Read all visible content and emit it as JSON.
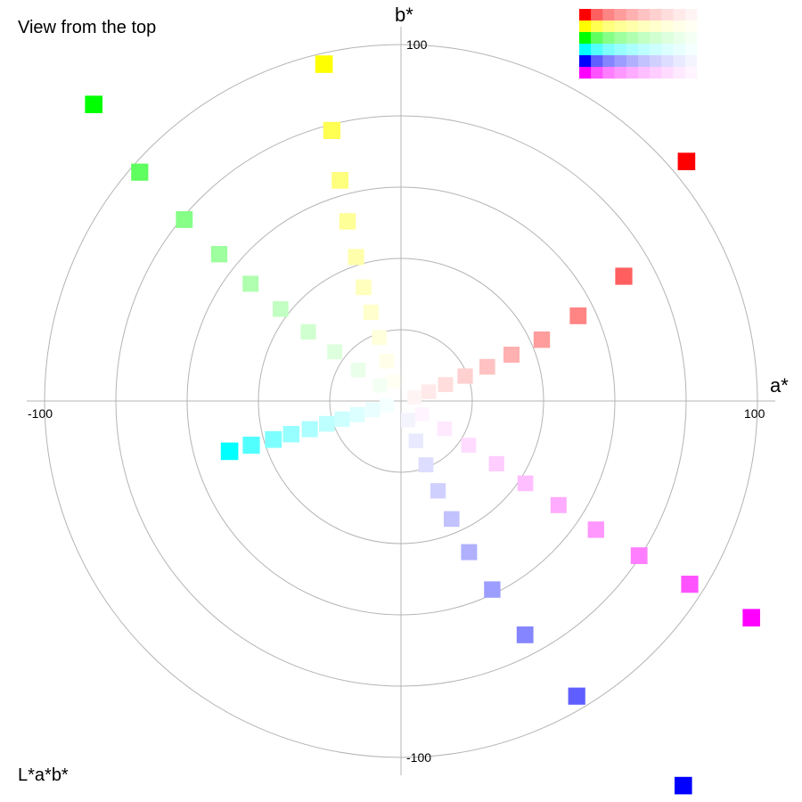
{
  "top_label": "View from the top",
  "bottom_label": "L*a*b*",
  "chart_data": {
    "type": "scatter",
    "xlabel": "a*",
    "ylabel": "b*",
    "xlim": [
      -100,
      100
    ],
    "ylim": [
      -100,
      100
    ],
    "x_tick_labels": [
      "-100",
      "100"
    ],
    "y_tick_labels": [
      "100",
      "-100"
    ],
    "grid": "concentric circles at radius 20, 40, 60, 80, 100",
    "series": [
      {
        "color": "#ff0000",
        "points": [
          {
            "a": 80.1,
            "b": 67.2,
            "fill": "#ff0000"
          },
          {
            "a": 62.5,
            "b": 35.0,
            "fill": "#ff5f5f"
          },
          {
            "a": 49.7,
            "b": 23.9,
            "fill": "#ff8585"
          },
          {
            "a": 39.5,
            "b": 17.2,
            "fill": "#ff9d9d"
          },
          {
            "a": 31.0,
            "b": 13.0,
            "fill": "#ffb0b0"
          },
          {
            "a": 24.2,
            "b": 9.6,
            "fill": "#ffc2c2"
          },
          {
            "a": 18.0,
            "b": 7.0,
            "fill": "#ffd0d0"
          },
          {
            "a": 12.5,
            "b": 4.6,
            "fill": "#ffdddd"
          },
          {
            "a": 7.8,
            "b": 2.6,
            "fill": "#ffe9e9"
          },
          {
            "a": 3.7,
            "b": 1.0,
            "fill": "#fff4f4"
          }
        ]
      },
      {
        "color": "#ffff00",
        "points": [
          {
            "a": -21.6,
            "b": 94.5,
            "fill": "#ffff00"
          },
          {
            "a": -19.4,
            "b": 75.9,
            "fill": "#ffff52"
          },
          {
            "a": -17.1,
            "b": 61.9,
            "fill": "#ffff7e"
          },
          {
            "a": -15.0,
            "b": 50.4,
            "fill": "#ffff97"
          },
          {
            "a": -12.6,
            "b": 40.4,
            "fill": "#ffffab"
          },
          {
            "a": -10.5,
            "b": 31.9,
            "fill": "#ffffbe"
          },
          {
            "a": -8.4,
            "b": 24.9,
            "fill": "#ffffcd"
          },
          {
            "a": -6.1,
            "b": 17.8,
            "fill": "#ffffdc"
          },
          {
            "a": -4.0,
            "b": 11.2,
            "fill": "#ffffe9"
          },
          {
            "a": -2.1,
            "b": 5.5,
            "fill": "#fffff4"
          }
        ]
      },
      {
        "color": "#00ff00",
        "points": [
          {
            "a": -86.2,
            "b": 83.2,
            "fill": "#00ff00"
          },
          {
            "a": -73.3,
            "b": 64.2,
            "fill": "#5fff5f"
          },
          {
            "a": -60.8,
            "b": 50.9,
            "fill": "#85ff85"
          },
          {
            "a": -51.0,
            "b": 41.2,
            "fill": "#9dff9d"
          },
          {
            "a": -42.2,
            "b": 32.9,
            "fill": "#b0ffb0"
          },
          {
            "a": -33.8,
            "b": 25.8,
            "fill": "#c2ffc2"
          },
          {
            "a": -26.0,
            "b": 19.4,
            "fill": "#d0ffd0"
          },
          {
            "a": -18.6,
            "b": 13.8,
            "fill": "#ddffdd"
          },
          {
            "a": -12.0,
            "b": 8.7,
            "fill": "#e9ffe9"
          },
          {
            "a": -5.9,
            "b": 4.4,
            "fill": "#f4fff4"
          }
        ]
      },
      {
        "color": "#00ffff",
        "points": [
          {
            "a": -48.1,
            "b": -14.1,
            "fill": "#00ffff"
          },
          {
            "a": -42.0,
            "b": -12.4,
            "fill": "#52ffff"
          },
          {
            "a": -35.8,
            "b": -10.8,
            "fill": "#7effff"
          },
          {
            "a": -30.8,
            "b": -9.3,
            "fill": "#97ffff"
          },
          {
            "a": -25.6,
            "b": -7.9,
            "fill": "#abffff"
          },
          {
            "a": -20.8,
            "b": -6.4,
            "fill": "#beffff"
          },
          {
            "a": -16.5,
            "b": -5.1,
            "fill": "#cdffff"
          },
          {
            "a": -12.2,
            "b": -3.8,
            "fill": "#dcffff"
          },
          {
            "a": -7.9,
            "b": -2.5,
            "fill": "#e9ffff"
          },
          {
            "a": -4.0,
            "b": -1.3,
            "fill": "#f4ffff"
          }
        ]
      },
      {
        "color": "#0000ff",
        "points": [
          {
            "a": 79.2,
            "b": -107.9,
            "fill": "#0000ff"
          },
          {
            "a": 49.3,
            "b": -82.8,
            "fill": "#5f5fff"
          },
          {
            "a": 34.8,
            "b": -65.6,
            "fill": "#8585ff"
          },
          {
            "a": 25.6,
            "b": -52.9,
            "fill": "#9d9dff"
          },
          {
            "a": 19.1,
            "b": -42.4,
            "fill": "#b0b0ff"
          },
          {
            "a": 14.2,
            "b": -33.1,
            "fill": "#c2c2ff"
          },
          {
            "a": 10.4,
            "b": -25.2,
            "fill": "#d0d0ff"
          },
          {
            "a": 7.0,
            "b": -17.9,
            "fill": "#ddddff"
          },
          {
            "a": 4.2,
            "b": -11.2,
            "fill": "#e9e9ff"
          },
          {
            "a": 2.0,
            "b": -5.4,
            "fill": "#f4f4ff"
          }
        ]
      },
      {
        "color": "#ff00ff",
        "points": [
          {
            "a": 98.3,
            "b": -60.8,
            "fill": "#ff00ff"
          },
          {
            "a": 81.0,
            "b": -51.4,
            "fill": "#ff52ff"
          },
          {
            "a": 66.8,
            "b": -43.4,
            "fill": "#ff7eff"
          },
          {
            "a": 54.7,
            "b": -36.1,
            "fill": "#ff97ff"
          },
          {
            "a": 44.2,
            "b": -29.2,
            "fill": "#ffabff"
          },
          {
            "a": 34.9,
            "b": -23.1,
            "fill": "#ffbeff"
          },
          {
            "a": 26.8,
            "b": -17.6,
            "fill": "#ffcdff"
          },
          {
            "a": 19.0,
            "b": -12.4,
            "fill": "#ffdcff"
          },
          {
            "a": 12.2,
            "b": -7.8,
            "fill": "#ffe9ff"
          },
          {
            "a": 5.9,
            "b": -3.7,
            "fill": "#fff4ff"
          }
        ]
      }
    ],
    "legend": {
      "placement": "top-right",
      "rows": [
        [
          "#ff0000",
          "#ff5f5f",
          "#ff8585",
          "#ff9d9d",
          "#ffb0b0",
          "#ffc2c2",
          "#ffd0d0",
          "#ffdddd",
          "#ffe9e9",
          "#fff4f4"
        ],
        [
          "#ffff00",
          "#ffff52",
          "#ffff7e",
          "#ffff97",
          "#ffffab",
          "#ffffbe",
          "#ffffcd",
          "#ffffdc",
          "#ffffe9",
          "#fffff4"
        ],
        [
          "#00ff00",
          "#5fff5f",
          "#85ff85",
          "#9dff9d",
          "#b0ffb0",
          "#c2ffc2",
          "#d0ffd0",
          "#ddffdd",
          "#e9ffe9",
          "#f4fff4"
        ],
        [
          "#00ffff",
          "#52ffff",
          "#7effff",
          "#97ffff",
          "#abffff",
          "#beffff",
          "#cdffff",
          "#dcffff",
          "#e9ffff",
          "#f4ffff"
        ],
        [
          "#0000ff",
          "#5f5fff",
          "#8585ff",
          "#9d9dff",
          "#b0b0ff",
          "#c2c2ff",
          "#d0d0ff",
          "#ddddff",
          "#e9e9ff",
          "#f4f4ff"
        ],
        [
          "#ff00ff",
          "#ff52ff",
          "#ff7eff",
          "#ff97ff",
          "#ffabff",
          "#ffbeff",
          "#ffcdff",
          "#ffdcff",
          "#ffe9ff",
          "#fff4ff"
        ]
      ]
    }
  }
}
